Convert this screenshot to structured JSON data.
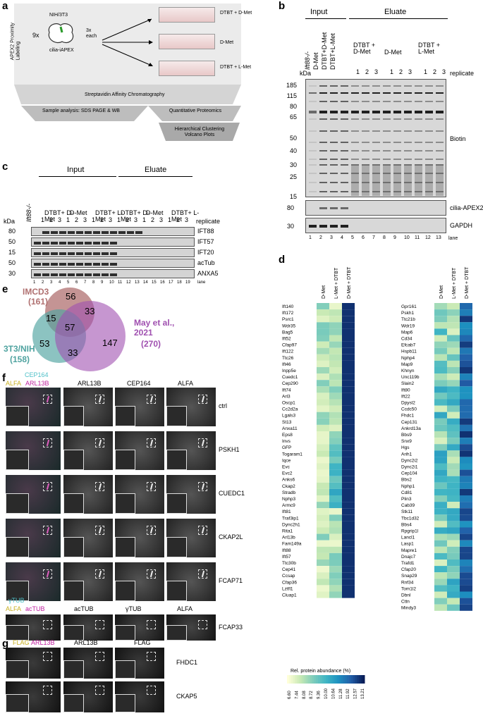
{
  "panels": {
    "a": "a",
    "b": "b",
    "c": "c",
    "d": "d",
    "e": "e",
    "f": "f",
    "g": "g"
  },
  "panel_a": {
    "side_label": "APEX2 Proximity Labeling",
    "multiplier": "9x",
    "cell_line": "NIH/3T3",
    "cell_label": "cilia-iAPEX",
    "each": "3x each",
    "conditions": [
      "DTBT + D-Met",
      "D-Met",
      "DTBT + L-Met"
    ],
    "step2": "Streptavidin Affinity Chromatography",
    "step3a": "Sample analysis: SDS PAGE & WB",
    "step3b": "Quantitative Proteomics",
    "step4": "Hierarchical Clustering Volcano Plots"
  },
  "panel_b": {
    "input": "Input",
    "eluate": "Eluate",
    "lanes_top": [
      "Ift88-/-",
      "D-Met",
      "DTBT+D-Met",
      "DTBT+L-Met"
    ],
    "groups": [
      "DTBT + D-Met",
      "D-Met",
      "DTBT + L-Met"
    ],
    "replicate_nums": [
      "1",
      "2",
      "3",
      "1",
      "2",
      "3",
      "1",
      "2",
      "3"
    ],
    "replicate": "replicate",
    "kda": "kDa",
    "markers": [
      "185",
      "115",
      "80",
      "65",
      "50",
      "40",
      "30",
      "25",
      "15"
    ],
    "marker_80": "80",
    "marker_30": "30",
    "blot_labels": [
      "Biotin",
      "cilia-APEX2",
      "GAPDH"
    ],
    "lane_numbers": [
      "1",
      "2",
      "3",
      "4",
      "5",
      "6",
      "7",
      "8",
      "9",
      "10",
      "11",
      "12",
      "13"
    ],
    "lane": "lane"
  },
  "panel_c": {
    "input": "Input",
    "eluate": "Eluate",
    "ift88": "Ift88-/-",
    "groups": [
      "DTBT+ D-Met",
      "D-Met",
      "DTBT+ L-Met",
      "DTBT+ D-Met",
      "D-Met",
      "DTBT+ L-Met"
    ],
    "kda": "kDa",
    "replicate": "replicate",
    "replicate_nums": [
      "1",
      "2",
      "3",
      "1",
      "2",
      "3",
      "1",
      "2",
      "3",
      "1",
      "2",
      "3",
      "1",
      "2",
      "3",
      "1",
      "2",
      "3"
    ],
    "markers": [
      "80",
      "50",
      "15",
      "50",
      "30"
    ],
    "blot_labels": [
      "IFT88",
      "IFT57",
      "IFT20",
      "acTub",
      "ANXA5"
    ],
    "lane_numbers": [
      "1",
      "2",
      "3",
      "4",
      "5",
      "6",
      "7",
      "8",
      "9",
      "10",
      "11",
      "12",
      "13",
      "14",
      "15",
      "16",
      "17",
      "18",
      "19"
    ],
    "lane": "lane"
  },
  "panel_d": {
    "cols": [
      "D-Met",
      "L-Met + DTBT",
      "D-Met + DTBT"
    ],
    "left_genes": [
      "Ift140",
      "Ift172",
      "Psrc1",
      "Wdr35",
      "Bag5",
      "Ift52",
      "Cfap97",
      "Ift122",
      "Ttc26",
      "Ift46",
      "Inpp5e",
      "Cuedc1",
      "Cep290",
      "Ift74",
      "Arl3",
      "Oscp1",
      "Cc2d2a",
      "Lgals3",
      "St13",
      "Anxa11",
      "Eps8",
      "Invs",
      "GFP",
      "Togaram1",
      "Iqce",
      "Evc",
      "Evc2",
      "Anks6",
      "Ckap2",
      "Stradb",
      "Nphp3",
      "Armc9",
      "Ift81",
      "Traf3ip1",
      "Dync2h1",
      "Rita1",
      "Arl13b",
      "Fam149a",
      "Ift88",
      "Ift57",
      "Ttc30b",
      "Cep41",
      "Ccsap",
      "Cfap36",
      "Lztfl1",
      "Cluap1"
    ],
    "right_genes": [
      "Gpr161",
      "Pskh1",
      "Ttc21b",
      "Wdr19",
      "Map6",
      "Cd34",
      "Efcab7",
      "Hspb11",
      "Nphp4",
      "Map9",
      "Khnyn",
      "Unc119b",
      "Slain2",
      "Ift80",
      "Ift22",
      "Dpysl2",
      "Ccdc50",
      "Fhdc1",
      "Cep131",
      "Ankrd13a",
      "Bbs9",
      "Snx9",
      "Hgs",
      "Arih1",
      "Dync2i2",
      "Dync2i1",
      "Cep104",
      "Bbs2",
      "Nphp1",
      "Cd81",
      "Plin3",
      "Cab39",
      "Stk11",
      "Tbc1d32",
      "Bbs4",
      "Rpgrip1l",
      "Lancl1",
      "Lasp1",
      "Mapre1",
      "Dnajc7",
      "Trafd1",
      "Cfap20",
      "Snap29",
      "Rnf34",
      "Tom1l2",
      "Dbnl",
      "Cttn",
      "Mindy3"
    ],
    "legend_title": "Rel. protein abundance (%)",
    "legend_ticks": [
      "6.60",
      "7.44",
      "8.08",
      "8.72",
      "9.36",
      "10.00",
      "10.64",
      "11.28",
      "11.92",
      "12.57",
      "13.21"
    ]
  },
  "panel_e": {
    "imcd3": "IMCD3",
    "imcd3_n": "(161)",
    "nih": "3T3/NIH",
    "nih_n": "(158)",
    "may": "May et al., 2021",
    "may_n": "(270)",
    "regions": [
      "56",
      "33",
      "15",
      "57",
      "53",
      "33",
      "147"
    ]
  },
  "panel_f": {
    "headers": [
      "ARL13B",
      "CEP164",
      "ALFA"
    ],
    "merge_label_1": "CEP164",
    "merge_label_2": "ALFA",
    "merge_label_3": "ARL13B",
    "rows": [
      "ctrl",
      "PSKH1",
      "CUEDC1",
      "CKAP2L",
      "FCAP71"
    ],
    "row2_headers": [
      "acTUB",
      "γTUB",
      "ALFA"
    ],
    "row2_merge_1": "γTUB",
    "row2_merge_2": "ALFA",
    "row2_merge_3": "acTUB",
    "row2_name": "FCAP33"
  },
  "panel_g": {
    "merge_1": "FLAG",
    "merge_2": "ARL13B",
    "headers": [
      "ARL13B",
      "FLAG"
    ],
    "rows": [
      "FHDC1",
      "CKAP5"
    ]
  },
  "colors": {
    "heat_low": "#ffffd9",
    "heat_mid": "#41b6c4",
    "heat_high": "#081d58",
    "imcd3": "#b07070",
    "nih": "#4fa3a0",
    "may": "#a050b0"
  }
}
